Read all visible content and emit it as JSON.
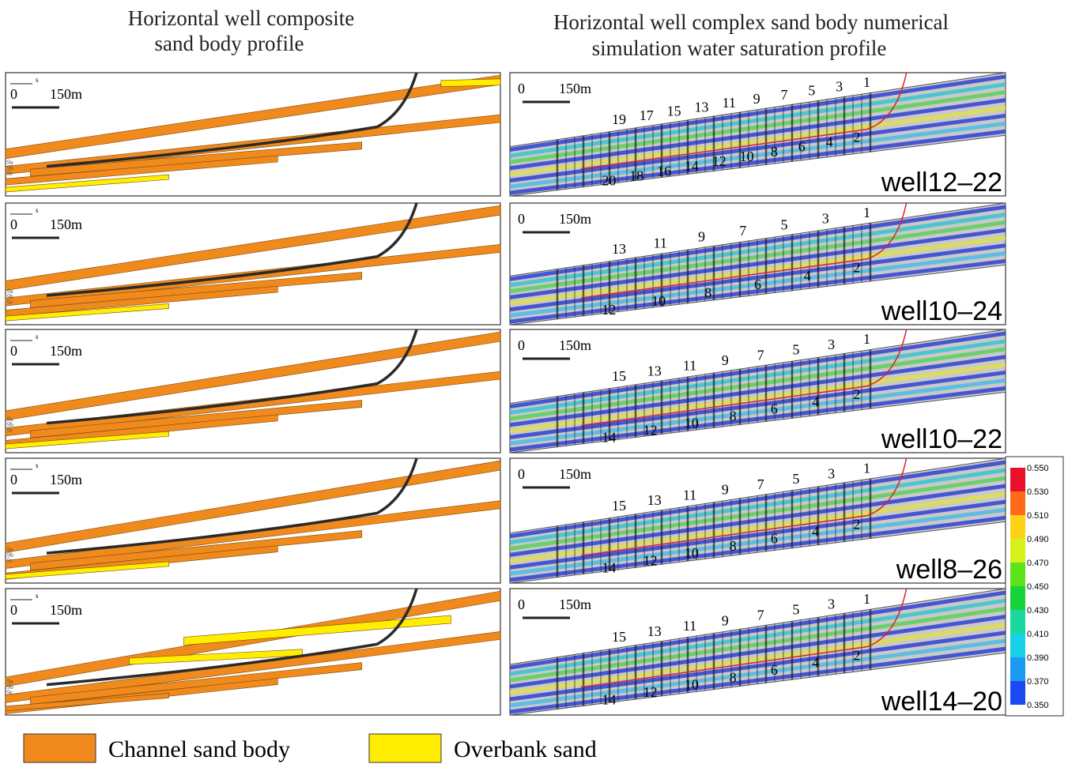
{
  "left_title": [
    "Horizontal well composite",
    "sand body profile"
  ],
  "right_title": [
    "Horizontal well complex sand body numerical",
    "simulation water saturation profile"
  ],
  "left_panels": [
    {
      "zero": "0",
      "north": "s",
      "scale": "150m",
      "layers": [
        "9a",
        "9b",
        "9c"
      ]
    },
    {
      "zero": "0",
      "north": "s",
      "scale": "150m",
      "layers": [
        "9a",
        "9b",
        "9c"
      ]
    },
    {
      "zero": "0",
      "north": "s",
      "scale": "150m",
      "layers": [
        "9a",
        "9b",
        "9c"
      ]
    },
    {
      "zero": "0",
      "north": "s",
      "scale": "150m",
      "layers": [
        "9a",
        "9b",
        "9c"
      ]
    },
    {
      "zero": "0",
      "north": "s",
      "scale": "150m",
      "layers": [
        "9a",
        "9b",
        "9c"
      ]
    }
  ],
  "right_panels": [
    {
      "zero": "0",
      "scale": "150m",
      "well": "well12–22",
      "top_labels": [
        "19",
        "17",
        "15",
        "13",
        "11",
        "9",
        "7",
        "5",
        "3",
        "1"
      ],
      "bottom_labels": [
        "20",
        "18",
        "16",
        "14",
        "12",
        "10",
        "8",
        "6",
        "4",
        "2"
      ]
    },
    {
      "zero": "0",
      "scale": "150m",
      "well": "well10–24",
      "top_labels": [
        "13",
        "11",
        "9",
        "7",
        "5",
        "3",
        "1"
      ],
      "bottom_labels": [
        "12",
        "10",
        "8",
        "6",
        "4",
        "2"
      ]
    },
    {
      "zero": "0",
      "scale": "150m",
      "well": "well10–22",
      "top_labels": [
        "15",
        "13",
        "11",
        "9",
        "7",
        "5",
        "3",
        "1"
      ],
      "bottom_labels": [
        "14",
        "12",
        "10",
        "8",
        "6",
        "4",
        "2"
      ]
    },
    {
      "zero": "0",
      "scale": "150m",
      "well": "well8–26",
      "top_labels": [
        "15",
        "13",
        "11",
        "9",
        "7",
        "5",
        "3",
        "1"
      ],
      "bottom_labels": [
        "14",
        "12",
        "10",
        "8",
        "6",
        "4",
        "2"
      ]
    },
    {
      "zero": "0",
      "scale": "150m",
      "well": "well14–20",
      "top_labels": [
        "15",
        "13",
        "11",
        "9",
        "7",
        "5",
        "3",
        "1"
      ],
      "bottom_labels": [
        "14",
        "12",
        "10",
        "8",
        "6",
        "4",
        "2"
      ]
    }
  ],
  "colorbar": {
    "ticks": [
      "0.550",
      "0.530",
      "0.510",
      "0.490",
      "0.470",
      "0.450",
      "0.430",
      "0.410",
      "0.390",
      "0.370",
      "0.350"
    ]
  },
  "legend": [
    {
      "label": "Channel sand body",
      "color": "#f08a1c"
    },
    {
      "label": "Overbank sand",
      "color": "#ffee00"
    }
  ]
}
